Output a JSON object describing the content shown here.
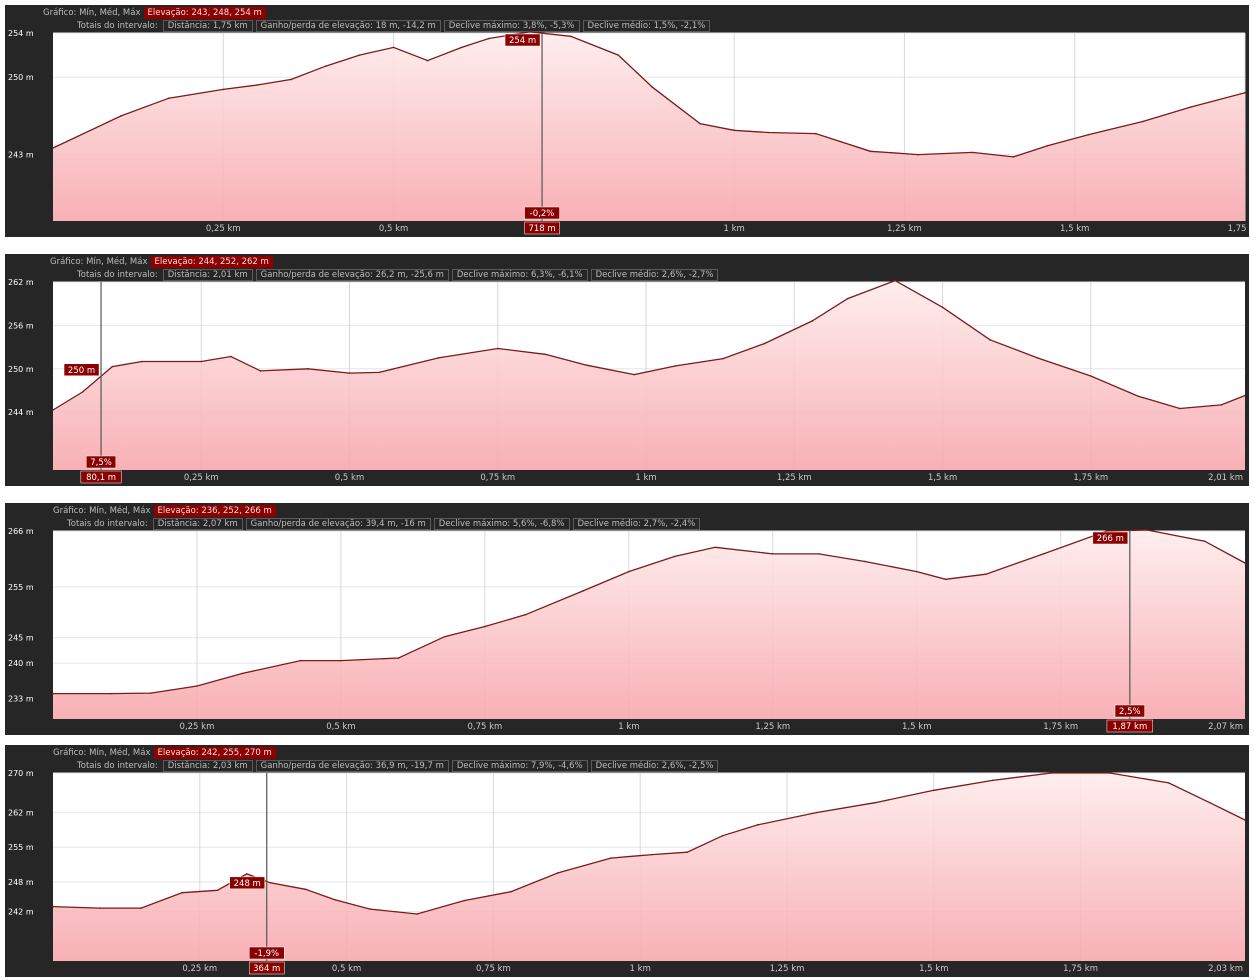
{
  "chart_data": [
    {
      "type": "area",
      "header": {
        "graph_label": "Gráfico: Mín, Méd, Máx",
        "elevation": "Elevação: 243, 248, 254 m",
        "totals_label": "Totais do intervalo:",
        "distance": "Distância: 1,75 km",
        "gain_loss": "Ganho/perda de elevação: 18 m, -14,2 m",
        "max_slope": "Declive máximo: 3,8%, -5,3%",
        "avg_slope": "Declive médio: 1,5%, -2,1%"
      },
      "ylim": [
        237,
        254
      ],
      "xlim": [
        0,
        1.75
      ],
      "y_ticks": [
        {
          "v": 254,
          "t": "254 m"
        },
        {
          "v": 250,
          "t": "250 m"
        },
        {
          "v": 243,
          "t": "243 m"
        }
      ],
      "x_ticks": [
        {
          "v": 0.25,
          "t": "0,25 km"
        },
        {
          "v": 0.5,
          "t": "0,5 km"
        },
        {
          "v": 1.0,
          "t": "1 km"
        },
        {
          "v": 1.25,
          "t": "1,25 km"
        },
        {
          "v": 1.5,
          "t": "1,5 km"
        },
        {
          "v": 1.75,
          "t": "1,75 km"
        }
      ],
      "x": [
        0,
        0.1,
        0.17,
        0.25,
        0.3,
        0.35,
        0.4,
        0.45,
        0.5,
        0.55,
        0.6,
        0.64,
        0.7,
        0.76,
        0.83,
        0.88,
        0.95,
        1.0,
        1.05,
        1.12,
        1.2,
        1.27,
        1.35,
        1.41,
        1.46,
        1.52,
        1.6,
        1.67,
        1.75
      ],
      "y": [
        243.6,
        246.5,
        248.1,
        248.9,
        249.3,
        249.8,
        251.0,
        252.0,
        252.7,
        251.5,
        252.7,
        253.5,
        254.1,
        253.7,
        252.0,
        249.1,
        245.8,
        245.2,
        245.0,
        244.9,
        243.3,
        243.0,
        243.2,
        242.8,
        243.8,
        244.8,
        246.0,
        247.3,
        248.6
      ],
      "cursor": {
        "x": 0.718,
        "y": 254,
        "elev_label": "254 m",
        "slope_label": "-0,2%",
        "dist_label": "718 m"
      }
    },
    {
      "type": "area",
      "header": {
        "graph_label": "Gráfico: Mín, Méd, Máx",
        "elevation": "Elevação: 244, 252, 262 m",
        "totals_label": "Totais do intervalo:",
        "distance": "Distância: 2,01 km",
        "gain_loss": "Ganho/perda de elevação: 26,2 m, -25,6 m",
        "max_slope": "Declive máximo: 6,3%, -6,1%",
        "avg_slope": "Declive médio: 2,6%, -2,7%"
      },
      "ylim": [
        236,
        262
      ],
      "xlim": [
        0,
        2.01
      ],
      "y_ticks": [
        {
          "v": 262,
          "t": "262 m"
        },
        {
          "v": 256,
          "t": "256 m"
        },
        {
          "v": 250,
          "t": "250 m"
        },
        {
          "v": 244,
          "t": "244 m"
        }
      ],
      "x_ticks": [
        {
          "v": 0.25,
          "t": "0,25 km"
        },
        {
          "v": 0.5,
          "t": "0,5 km"
        },
        {
          "v": 0.75,
          "t": "0,75 km"
        },
        {
          "v": 1.0,
          "t": "1 km"
        },
        {
          "v": 1.25,
          "t": "1,25 km"
        },
        {
          "v": 1.5,
          "t": "1,5 km"
        },
        {
          "v": 1.75,
          "t": "1,75 km"
        }
      ],
      "x": [
        0,
        0.05,
        0.1,
        0.15,
        0.25,
        0.3,
        0.35,
        0.43,
        0.5,
        0.55,
        0.65,
        0.75,
        0.83,
        0.9,
        0.98,
        1.05,
        1.13,
        1.2,
        1.28,
        1.34,
        1.42,
        1.5,
        1.58,
        1.66,
        1.75,
        1.83,
        1.9,
        1.97,
        2.01
      ],
      "y": [
        244.3,
        246.8,
        250.3,
        251.0,
        251.0,
        251.7,
        249.7,
        250.0,
        249.4,
        249.5,
        251.5,
        252.8,
        252.0,
        250.5,
        249.2,
        250.4,
        251.4,
        253.5,
        256.6,
        259.7,
        262.2,
        258.5,
        254.0,
        251.5,
        249.0,
        246.2,
        244.5,
        245.0,
        246.3
      ],
      "cursor": {
        "x": 0.081,
        "y": 250,
        "elev_label": "250 m",
        "slope_label": "7,5%",
        "dist_label": "80,1 m"
      },
      "end_label": "2,01 km"
    },
    {
      "type": "area",
      "header": {
        "graph_label": "Gráfico: Mín, Méd, Máx",
        "elevation": "Elevação: 236, 252, 266 m",
        "totals_label": "Totais do intervalo:",
        "distance": "Distância: 2,07 km",
        "gain_loss": "Ganho/perda de elevação: 39,4 m, -16 m",
        "max_slope": "Declive máximo: 5,6%, -6,8%",
        "avg_slope": "Declive médio: 2,7%, -2,4%"
      },
      "ylim": [
        229,
        266
      ],
      "xlim": [
        0,
        2.07
      ],
      "y_ticks": [
        {
          "v": 266,
          "t": "266 m"
        },
        {
          "v": 255,
          "t": "255 m"
        },
        {
          "v": 245,
          "t": "245 m"
        },
        {
          "v": 240,
          "t": "240 m"
        },
        {
          "v": 233,
          "t": "233 m"
        }
      ],
      "x_ticks": [
        {
          "v": 0.25,
          "t": "0,25 km"
        },
        {
          "v": 0.5,
          "t": "0,5 km"
        },
        {
          "v": 0.75,
          "t": "0,75 km"
        },
        {
          "v": 1.0,
          "t": "1 km"
        },
        {
          "v": 1.25,
          "t": "1,25 km"
        },
        {
          "v": 1.5,
          "t": "1,5 km"
        },
        {
          "v": 1.75,
          "t": "1,75 km"
        }
      ],
      "x": [
        0,
        0.1,
        0.17,
        0.25,
        0.33,
        0.43,
        0.5,
        0.6,
        0.68,
        0.75,
        0.82,
        0.92,
        1.0,
        1.08,
        1.15,
        1.25,
        1.33,
        1.41,
        1.5,
        1.55,
        1.62,
        1.72,
        1.83,
        1.9,
        2.0,
        2.07
      ],
      "y": [
        234.0,
        234.0,
        234.1,
        235.5,
        238.0,
        240.5,
        240.5,
        241.0,
        245.2,
        247.2,
        249.5,
        254.2,
        258.0,
        261.0,
        262.8,
        261.5,
        261.5,
        260.0,
        258.0,
        256.5,
        257.5,
        261.5,
        266.0,
        266.2,
        264.0,
        259.7
      ],
      "cursor": {
        "x": 1.87,
        "y": 266,
        "elev_label": "266 m",
        "slope_label": "2,5%",
        "dist_label": "1,87 km"
      },
      "end_label": "2,07 km"
    },
    {
      "type": "area",
      "header": {
        "graph_label": "Gráfico: Mín, Méd, Máx",
        "elevation": "Elevação: 242, 255, 270 m",
        "totals_label": "Totais do intervalo:",
        "distance": "Distância: 2,03 km",
        "gain_loss": "Ganho/perda de elevação: 36,9 m, -19,7 m",
        "max_slope": "Declive máximo: 7,9%, -4,6%",
        "avg_slope": "Declive médio: 2,6%, -2,5%"
      },
      "ylim": [
        232,
        270
      ],
      "xlim": [
        0,
        2.03
      ],
      "y_ticks": [
        {
          "v": 270,
          "t": "270 m"
        },
        {
          "v": 262,
          "t": "262 m"
        },
        {
          "v": 255,
          "t": "255 m"
        },
        {
          "v": 248,
          "t": "248 m"
        },
        {
          "v": 242,
          "t": "242 m"
        }
      ],
      "x_ticks": [
        {
          "v": 0.25,
          "t": "0,25 km"
        },
        {
          "v": 0.5,
          "t": "0,5 km"
        },
        {
          "v": 0.75,
          "t": "0,75 km"
        },
        {
          "v": 1.0,
          "t": "1 km"
        },
        {
          "v": 1.25,
          "t": "1,25 km"
        },
        {
          "v": 1.5,
          "t": "1,5 km"
        },
        {
          "v": 1.75,
          "t": "1,75 km"
        }
      ],
      "x": [
        0,
        0.08,
        0.15,
        0.22,
        0.28,
        0.33,
        0.37,
        0.43,
        0.48,
        0.54,
        0.62,
        0.7,
        0.78,
        0.86,
        0.95,
        1.02,
        1.08,
        1.14,
        1.2,
        1.3,
        1.4,
        1.5,
        1.6,
        1.7,
        1.8,
        1.9,
        1.97,
        2.03
      ],
      "y": [
        243.0,
        242.7,
        242.7,
        245.8,
        246.3,
        249.6,
        247.8,
        246.5,
        244.4,
        242.5,
        241.5,
        244.2,
        246.0,
        249.8,
        252.8,
        253.5,
        254.0,
        257.3,
        259.5,
        262.0,
        264.0,
        266.5,
        268.5,
        270.0,
        270.0,
        268.0,
        264.0,
        260.5
      ],
      "cursor": {
        "x": 0.364,
        "y": 248,
        "elev_label": "248 m",
        "slope_label": "-1,9%",
        "dist_label": "364 m"
      },
      "end_label": "2,03 km"
    }
  ]
}
